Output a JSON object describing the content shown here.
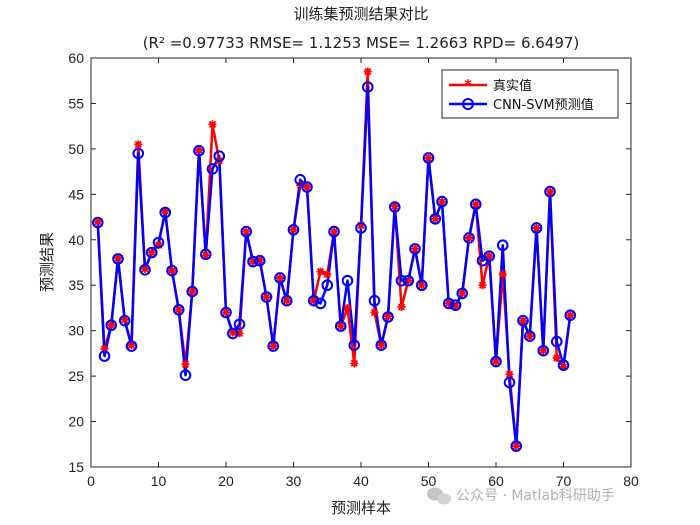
{
  "chart_data": {
    "type": "line",
    "title": "训练集预测结果对比",
    "subtitle": "(R² =0.97733 RMSE= 1.1253 MSE= 1.2663 RPD= 6.6497)",
    "xlabel": "预测样本",
    "ylabel": "预测结果",
    "xlim": [
      0,
      80
    ],
    "ylim": [
      15,
      60
    ],
    "xticks": [
      0,
      10,
      20,
      30,
      40,
      50,
      60,
      70,
      80
    ],
    "yticks": [
      15,
      20,
      25,
      30,
      35,
      40,
      45,
      50,
      55,
      60
    ],
    "grid": false,
    "legend": "top-right",
    "x": [
      1,
      2,
      3,
      4,
      5,
      6,
      7,
      8,
      9,
      10,
      11,
      12,
      13,
      14,
      15,
      16,
      17,
      18,
      19,
      20,
      21,
      22,
      23,
      24,
      25,
      26,
      27,
      28,
      29,
      30,
      31,
      32,
      33,
      34,
      35,
      36,
      37,
      38,
      39,
      40,
      41,
      42,
      43,
      44,
      45,
      46,
      47,
      48,
      49,
      50,
      51,
      52,
      53,
      54,
      55,
      56,
      57,
      58,
      59,
      60,
      61,
      62,
      63,
      64,
      65,
      66,
      67,
      68,
      69,
      70,
      71
    ],
    "series": [
      {
        "name": "真实值",
        "color": "#ff0000",
        "marker": "asterisk",
        "values": [
          42.0,
          28.0,
          30.6,
          38.0,
          31.2,
          28.4,
          50.5,
          36.8,
          38.6,
          39.4,
          43.2,
          36.6,
          32.3,
          26.3,
          34.3,
          49.9,
          38.3,
          52.7,
          48.7,
          32.0,
          29.8,
          29.7,
          40.9,
          37.6,
          37.8,
          33.7,
          28.3,
          35.8,
          33.3,
          41.1,
          46.0,
          45.8,
          33.3,
          36.5,
          36.2,
          40.9,
          30.5,
          32.5,
          26.4,
          41.6,
          58.5,
          32.0,
          28.4,
          31.6,
          43.7,
          32.6,
          35.5,
          39.0,
          35.0,
          49.0,
          42.3,
          44.2,
          33.0,
          32.7,
          34.1,
          40.2,
          43.9,
          35.0,
          38.2,
          26.6,
          36.2,
          25.2,
          17.3,
          31.1,
          29.4,
          41.3,
          27.8,
          45.3,
          27.0,
          26.0,
          31.7
        ]
      },
      {
        "name": "CNN-SVM预测值",
        "color": "#0000ff",
        "marker": "circle",
        "values": [
          41.9,
          27.2,
          30.6,
          37.9,
          31.1,
          28.3,
          49.5,
          36.7,
          38.6,
          39.7,
          43.0,
          36.6,
          32.3,
          25.1,
          34.3,
          49.8,
          38.4,
          47.8,
          49.2,
          32.0,
          29.7,
          30.7,
          40.9,
          37.6,
          37.7,
          33.7,
          28.3,
          35.8,
          33.3,
          41.1,
          46.6,
          45.8,
          33.3,
          33.0,
          35.0,
          40.9,
          30.5,
          35.5,
          28.4,
          41.3,
          56.8,
          33.3,
          28.4,
          31.5,
          43.6,
          35.5,
          35.5,
          39.0,
          35.0,
          49.0,
          42.3,
          44.2,
          33.0,
          32.8,
          34.1,
          40.2,
          43.9,
          37.7,
          38.2,
          26.6,
          39.4,
          24.3,
          17.3,
          31.1,
          29.4,
          41.3,
          27.8,
          45.3,
          28.8,
          26.2,
          31.7
        ]
      }
    ]
  },
  "watermark": "公众号 · Matlab科研助手"
}
